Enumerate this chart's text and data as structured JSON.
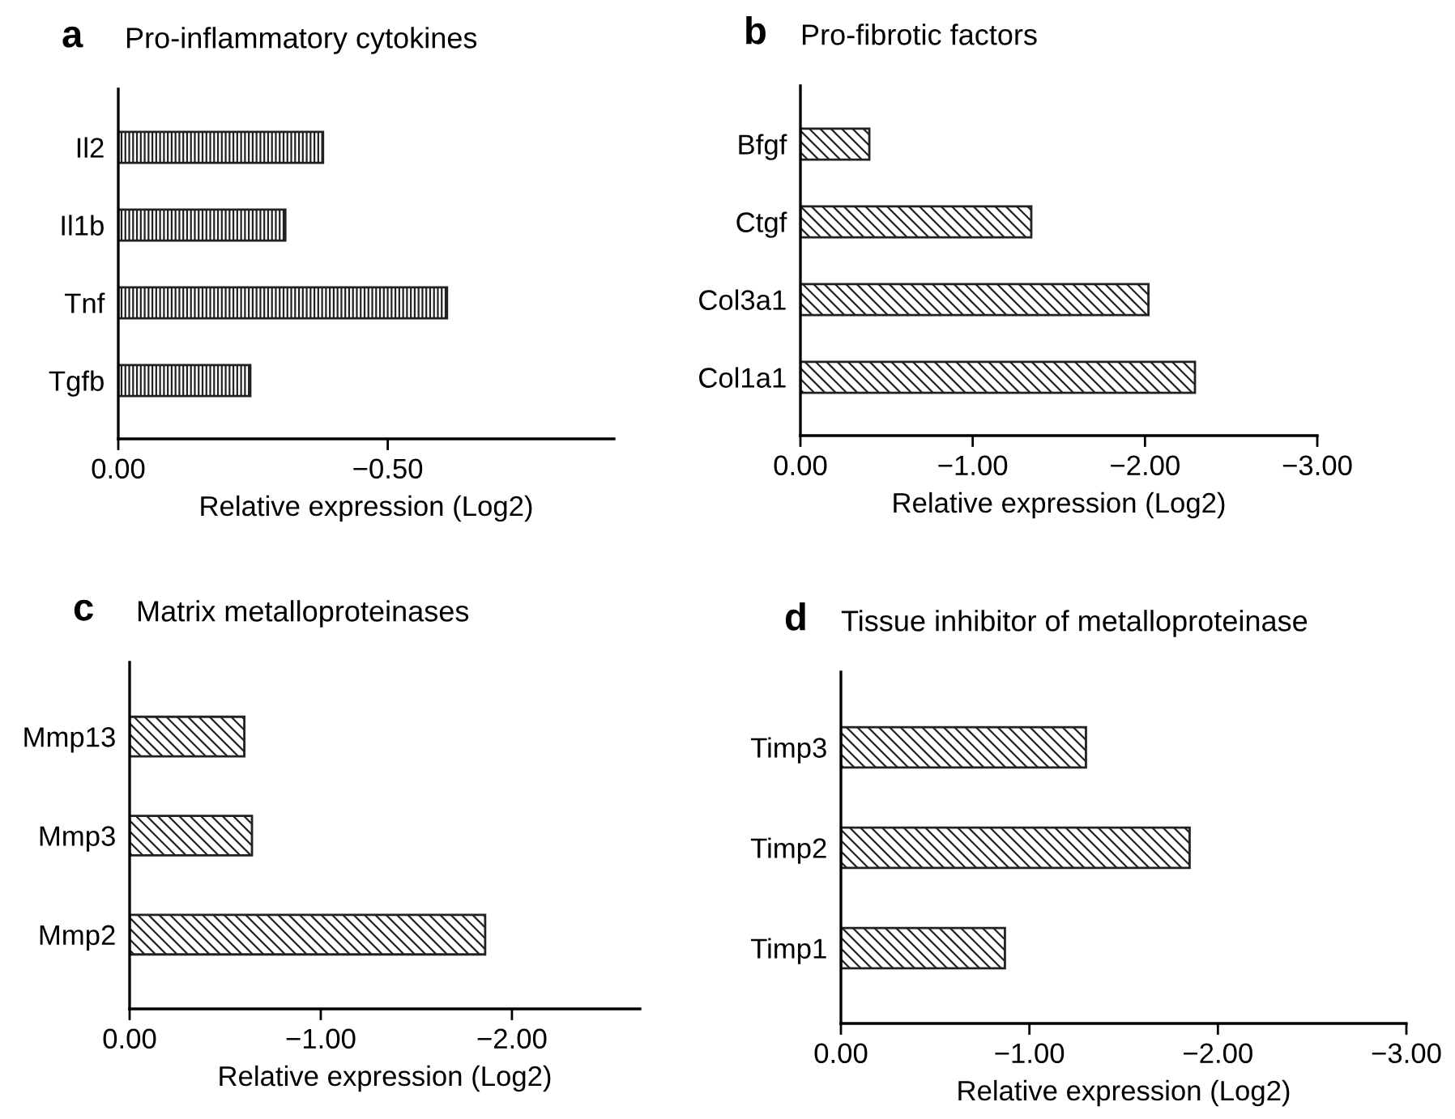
{
  "chart_data": [
    {
      "type": "bar",
      "orientation": "horizontal",
      "title": "Pro-inflammatory cytokines",
      "annotations": [
        "a"
      ],
      "xlabel": "Relative expression (Log2)",
      "categories": [
        "Il2",
        "Il1b",
        "Tnf",
        "Tgfb"
      ],
      "values": [
        -0.38,
        -0.31,
        -0.61,
        -0.245
      ],
      "color": "#222222",
      "xlim": [
        0,
        -0.92
      ],
      "xticks": [
        {
          "value": 0,
          "label": "0.00"
        },
        {
          "value": -0.5,
          "label": "−0.50"
        }
      ],
      "grid": false
    },
    {
      "type": "bar",
      "orientation": "horizontal",
      "title": "Pro-fibrotic factors",
      "annotations": [
        "b"
      ],
      "xlabel": "Relative expression (Log2)",
      "categories": [
        "Bfgf",
        "Ctgf",
        "Col3a1",
        "Col1a1"
      ],
      "values": [
        -0.4,
        -1.34,
        -2.02,
        -2.29
      ],
      "color": "#222222",
      "xlim": [
        0,
        -3
      ],
      "xticks": [
        {
          "value": 0,
          "label": "0.00"
        },
        {
          "value": -1,
          "label": "−1.00"
        },
        {
          "value": -2,
          "label": "−2.00"
        },
        {
          "value": -3,
          "label": "−3.00"
        }
      ],
      "grid": false
    },
    {
      "type": "bar",
      "orientation": "horizontal",
      "title": "Matrix metalloproteinases",
      "annotations": [
        "c"
      ],
      "xlabel": "Relative expression (Log2)",
      "categories": [
        "Mmp13",
        "Mmp3",
        "Mmp2"
      ],
      "values": [
        -0.6,
        -0.64,
        -1.86
      ],
      "color": "#222222",
      "xlim": [
        0,
        -2.67
      ],
      "xticks": [
        {
          "value": 0,
          "label": "0.00"
        },
        {
          "value": -1,
          "label": "−1.00"
        },
        {
          "value": -2,
          "label": "−2.00"
        }
      ],
      "grid": false
    },
    {
      "type": "bar",
      "orientation": "horizontal",
      "title": "Tissue inhibitor of metalloproteinase",
      "annotations": [
        "d"
      ],
      "xlabel": "Relative expression (Log2)",
      "categories": [
        "Timp3",
        "Timp2",
        "Timp1"
      ],
      "values": [
        -1.3,
        -1.85,
        -0.87
      ],
      "color": "#222222",
      "xlim": [
        0,
        -3
      ],
      "xticks": [
        {
          "value": 0,
          "label": "0.00"
        },
        {
          "value": -1,
          "label": "−1.00"
        },
        {
          "value": -2,
          "label": "−2.00"
        },
        {
          "value": -3,
          "label": "−3.00"
        }
      ],
      "grid": false
    }
  ]
}
